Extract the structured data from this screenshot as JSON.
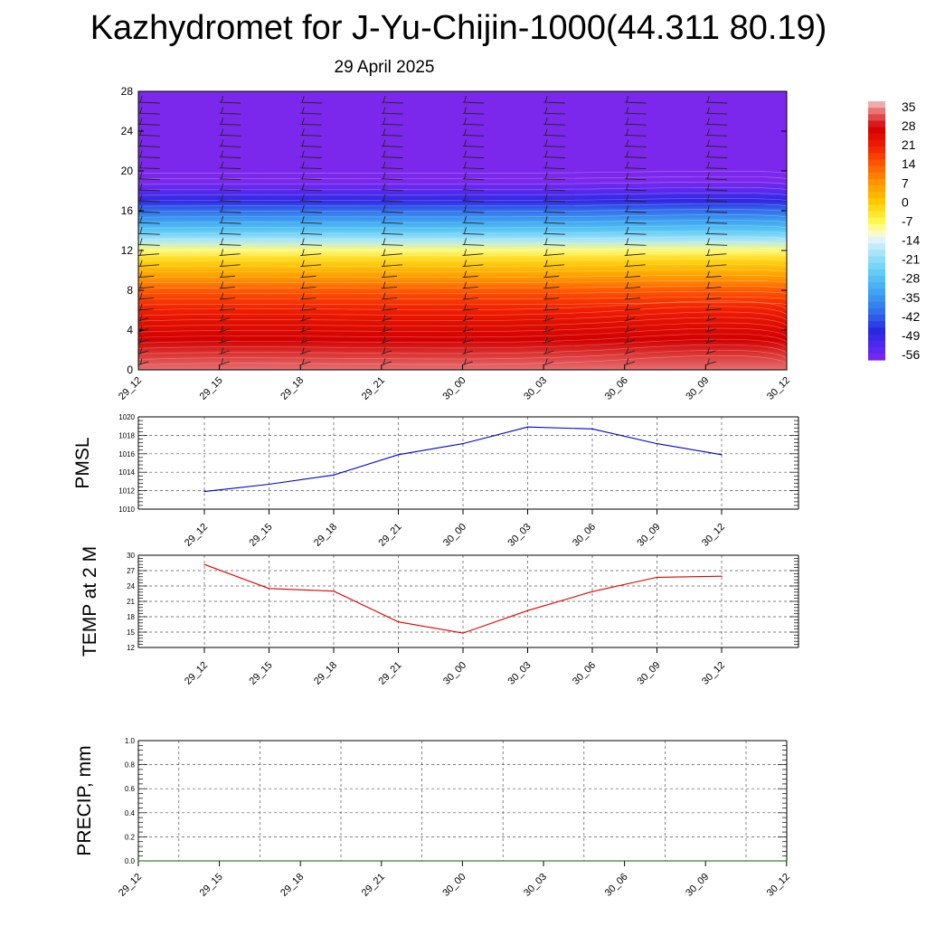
{
  "title": "Kazhydromet for J-Yu-Chijin-1000(44.311 80.19)",
  "subtitle": "29 April 2025",
  "chart_data": [
    {
      "type": "heatmap",
      "name": "vertical-cross-section",
      "x_ticks": [
        "29_12",
        "29_15",
        "29_18",
        "29_21",
        "30_00",
        "30_03",
        "30_06",
        "30_09",
        "30_12"
      ],
      "ylim": [
        0,
        28
      ],
      "y_ticks": [
        0,
        4,
        8,
        12,
        16,
        20,
        24,
        28
      ],
      "colorbar": {
        "labels": [
          "35",
          "28",
          "21",
          "14",
          "7",
          "0",
          "-7",
          "-14",
          "-21",
          "-28",
          "-35",
          "-42",
          "-49",
          "-56"
        ],
        "range": [
          -60,
          38
        ]
      },
      "profile_levels": [
        0,
        1,
        2,
        3,
        4,
        5,
        6,
        7,
        8,
        9,
        10,
        11,
        12,
        13,
        14,
        15,
        16,
        17,
        18,
        19,
        20,
        28
      ],
      "profile_temps": [
        34,
        32,
        30,
        28,
        26,
        24,
        21,
        18,
        14,
        8,
        3,
        -2,
        -9,
        -19,
        -28,
        -35,
        -42,
        -50,
        -56,
        -60,
        -60,
        -60
      ],
      "wind_barbs": "present"
    },
    {
      "type": "line",
      "name": "pmsl",
      "ylabel": "PMSL",
      "x": [
        "29_12",
        "29_15",
        "29_18",
        "29_21",
        "30_00",
        "30_03",
        "30_06",
        "30_09",
        "30_12"
      ],
      "ylim": [
        1010,
        1020
      ],
      "y_ticks": [
        1010,
        1012,
        1014,
        1016,
        1018,
        1020
      ],
      "series": [
        {
          "color": "#0000cc",
          "values": [
            1011.9,
            1012.7,
            1013.7,
            1015.9,
            1017.1,
            1018.9,
            1018.7,
            1017.1,
            1015.9
          ]
        }
      ]
    },
    {
      "type": "line",
      "name": "temp2m",
      "ylabel": "TEMP at 2 M",
      "x": [
        "29_12",
        "29_15",
        "29_18",
        "29_21",
        "30_00",
        "30_03",
        "30_06",
        "30_09",
        "30_12"
      ],
      "ylim": [
        12,
        30
      ],
      "y_ticks": [
        12,
        15,
        18,
        21,
        24,
        27,
        30
      ],
      "series": [
        {
          "color": "#dd0000",
          "values": [
            28.2,
            23.5,
            23.0,
            17.0,
            14.8,
            19.2,
            22.9,
            25.7,
            25.9
          ]
        }
      ]
    },
    {
      "type": "line",
      "name": "precip",
      "ylabel": "PRECIP, mm",
      "x": [
        "29_12",
        "29_15",
        "29_18",
        "29_21",
        "30_00",
        "30_03",
        "30_06",
        "30_09",
        "30_12"
      ],
      "ylim": [
        0,
        1
      ],
      "y_ticks": [
        "0.0",
        "0.2",
        "0.4",
        "0.6",
        "0.8",
        "1.0"
      ],
      "series": [
        {
          "color": "#006600",
          "values": [
            0,
            0,
            0,
            0,
            0,
            0,
            0,
            0,
            0
          ]
        }
      ]
    }
  ]
}
